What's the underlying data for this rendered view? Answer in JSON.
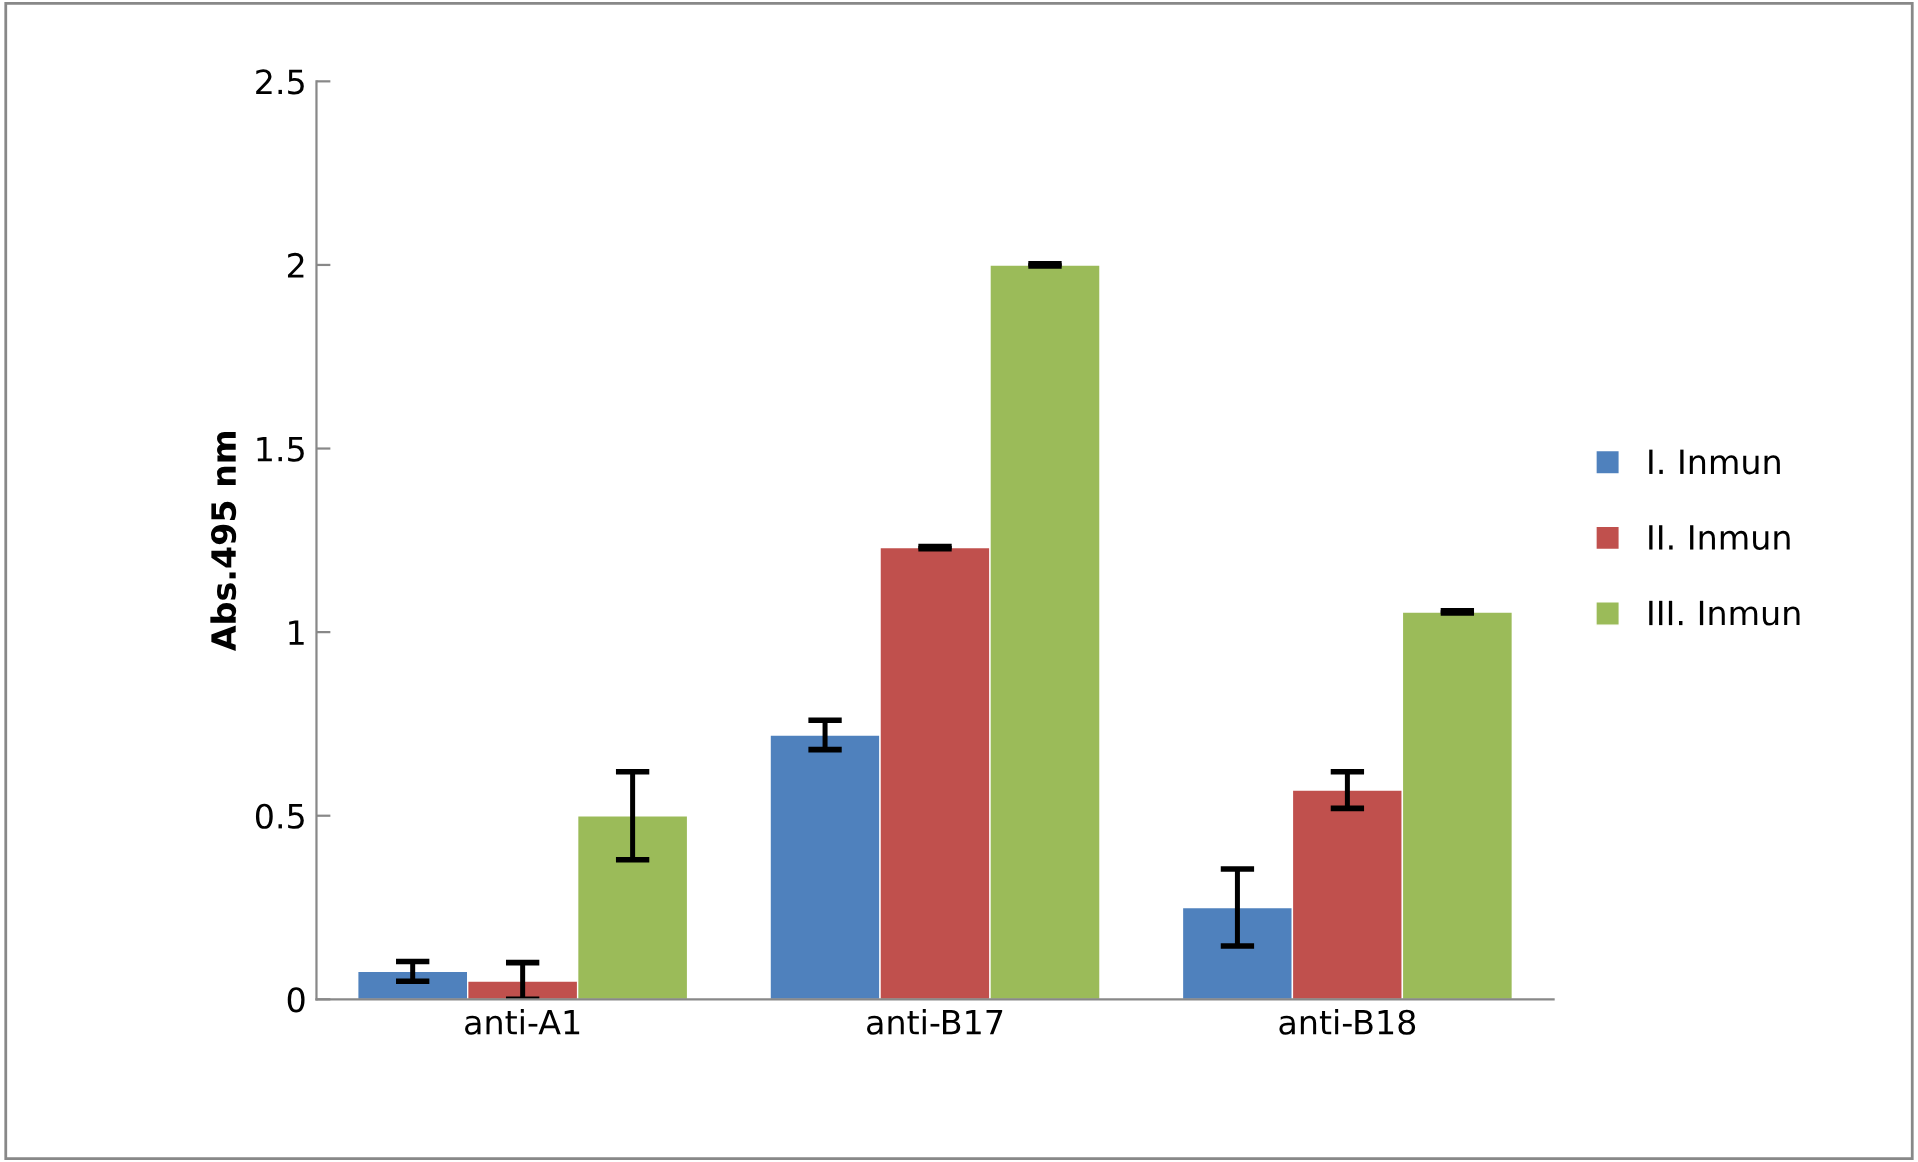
{
  "chart_data": {
    "type": "bar",
    "ylabel": "Abs.495 nm",
    "categories": [
      "anti-A1",
      "anti-B17",
      "anti-B18"
    ],
    "series": [
      {
        "name": "I. Inmun",
        "color": "#4f81bd",
        "values": [
          0.076,
          0.72,
          0.25
        ],
        "errors": [
          0.027,
          0.04,
          0.105
        ]
      },
      {
        "name": "II. Inmun",
        "color": "#c0504d",
        "values": [
          0.05,
          1.23,
          0.57
        ],
        "errors": [
          0.05,
          0.003,
          0.05
        ]
      },
      {
        "name": "III. Inmun",
        "color": "#9bbb59",
        "values": [
          0.5,
          2.0,
          1.055
        ],
        "errors": [
          0.12,
          0.003,
          0.003
        ]
      }
    ],
    "ylim": [
      0,
      2.5
    ],
    "yticks": [
      0,
      0.5,
      1,
      1.5,
      2,
      2.5
    ],
    "grid": false,
    "legend": "right"
  }
}
